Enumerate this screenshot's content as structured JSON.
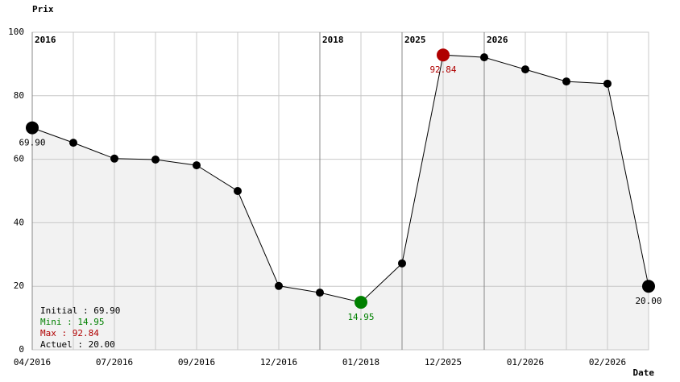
{
  "chart_data": {
    "type": "line",
    "y_label": "Prix",
    "x_label": "Date",
    "categories": [
      "04/2016",
      null,
      "07/2016",
      null,
      "09/2016",
      null,
      "12/2016",
      null,
      "01/2018",
      null,
      "12/2025",
      null,
      "01/2026",
      null,
      "02/2026",
      null
    ],
    "year_markers": [
      "2016",
      null,
      null,
      null,
      null,
      null,
      null,
      "2018",
      null,
      "2025",
      null,
      "2026",
      null,
      null,
      null,
      null
    ],
    "values": [
      69.9,
      65.2,
      60.2,
      59.9,
      58.1,
      50.0,
      20.1,
      18.0,
      14.95,
      27.2,
      92.84,
      92.1,
      88.3,
      84.5,
      83.8,
      20.0
    ],
    "value_labels": [
      "69.90",
      null,
      null,
      null,
      null,
      null,
      null,
      null,
      "14.95",
      null,
      "92.84",
      null,
      null,
      null,
      null,
      "20.00"
    ],
    "color": "#000000",
    "fill_color": "#f2f2f2",
    "min_color": "#008000",
    "max_color": "#b00000",
    "ylim": [
      0,
      100
    ],
    "yticks": [
      0,
      20,
      40,
      60,
      80,
      100
    ],
    "grid": true,
    "stats": [
      {
        "text": "Initial : 69.90",
        "color": "#000000"
      },
      {
        "text": "Mini : 14.95",
        "color": "#008000"
      },
      {
        "text": "Max : 92.84",
        "color": "#b00000"
      },
      {
        "text": "Actuel : 20.00",
        "color": "#000000"
      }
    ]
  }
}
